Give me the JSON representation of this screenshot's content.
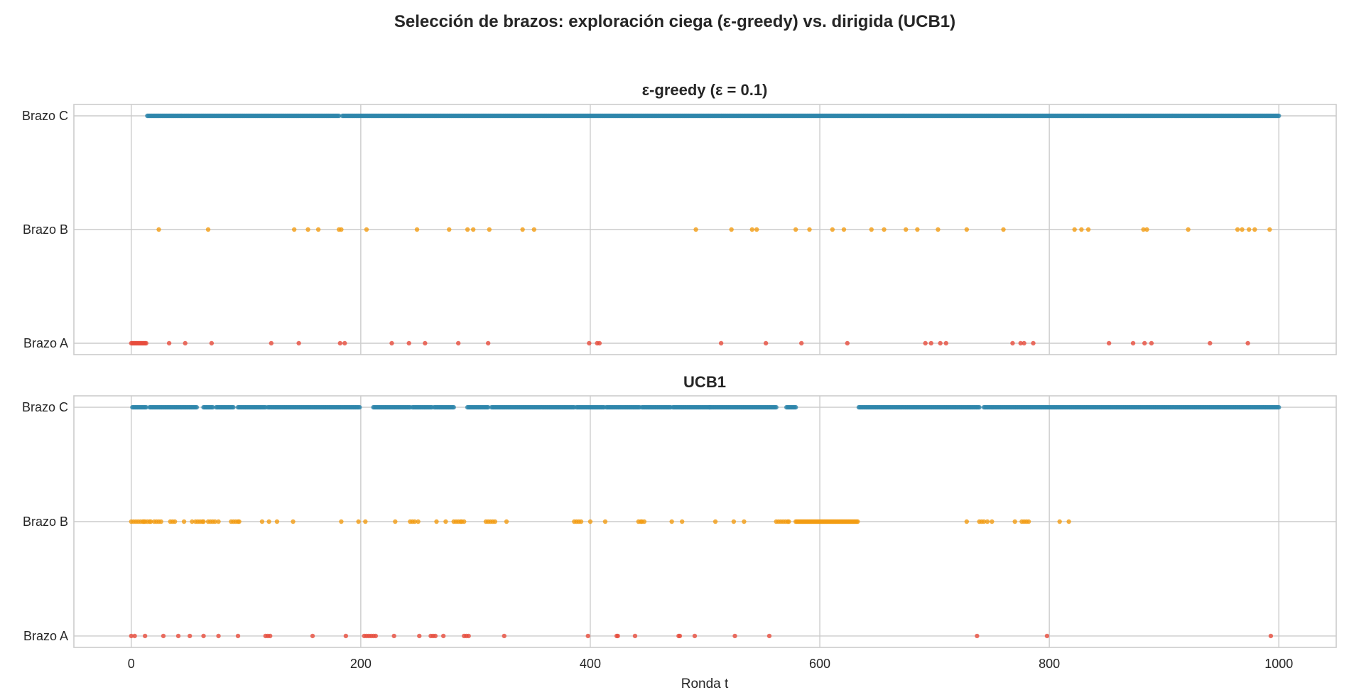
{
  "chart_data": {
    "title": "Selección de brazos: exploración ciega (ε-greedy) vs. dirigida (UCB1)",
    "xlabel": "Ronda t",
    "xlim": [
      -50,
      1050
    ],
    "xticks": [
      0,
      200,
      400,
      600,
      800,
      1000
    ],
    "grid": true,
    "categories": [
      "Brazo A",
      "Brazo B",
      "Brazo C"
    ],
    "colors": {
      "Brazo A": "#E74C3C",
      "Brazo B": "#F39C12",
      "Brazo C": "#2E86AB"
    },
    "panels": [
      {
        "type": "scatter",
        "title": "ε-greedy (ε = 0.1)",
        "series": [
          {
            "category": "Brazo A",
            "x": [
              0,
              1,
              2,
              3,
              4,
              5,
              6,
              7,
              8,
              9,
              10,
              11,
              12,
              13,
              33,
              47,
              70,
              122,
              146,
              182,
              186,
              227,
              242,
              256,
              285,
              311,
              399,
              406,
              408,
              514,
              553,
              584,
              624,
              692,
              697,
              705,
              710,
              768,
              775,
              778,
              786,
              852,
              873,
              883,
              889,
              940,
              973
            ]
          },
          {
            "category": "Brazo B",
            "x": [
              24,
              67,
              142,
              154,
              163,
              181,
              183,
              205,
              249,
              277,
              293,
              298,
              312,
              341,
              351,
              492,
              523,
              541,
              545,
              579,
              591,
              611,
              621,
              645,
              656,
              675,
              685,
              703,
              728,
              760,
              822,
              828,
              834,
              882,
              885,
              921,
              964,
              968,
              974,
              979,
              992
            ]
          },
          {
            "category": "Brazo C",
            "x_ranges": [
              [
                14,
                181
              ],
              [
                184,
                1000
              ]
            ]
          }
        ]
      },
      {
        "type": "scatter",
        "title": "UCB1",
        "series": [
          {
            "category": "Brazo A",
            "x": [
              0,
              3,
              12,
              28,
              41,
              51,
              63,
              76,
              93,
              117,
              119,
              121,
              158,
              187,
              203,
              205,
              207,
              209,
              211,
              213,
              229,
              251,
              261,
              263,
              265,
              272,
              290,
              292,
              294,
              325,
              398,
              423,
              424,
              439,
              477,
              478,
              491,
              526,
              556,
              737,
              798,
              993
            ]
          },
          {
            "category": "Brazo B",
            "x": [
              0,
              2,
              4,
              6,
              8,
              10,
              11,
              12,
              14,
              16,
              17,
              20,
              22,
              24,
              26,
              34,
              36,
              38,
              46,
              53,
              56,
              58,
              60,
              62,
              63,
              67,
              69,
              71,
              73,
              76,
              87,
              89,
              91,
              93,
              94,
              114,
              120,
              127,
              141,
              183,
              198,
              204,
              230,
              243,
              245,
              247,
              250,
              266,
              274,
              281,
              283,
              285,
              287,
              288,
              290,
              309,
              311,
              313,
              315,
              317,
              327,
              386,
              388,
              390,
              392,
              400,
              413,
              442,
              444,
              445,
              447,
              471,
              480,
              509,
              525,
              534,
              562,
              564,
              566,
              568,
              570,
              572,
              573,
              579,
              580,
              581,
              582,
              583,
              584,
              585,
              586,
              587,
              588,
              589,
              590,
              591,
              592,
              593,
              594,
              595,
              596,
              597,
              598,
              599,
              600,
              601,
              602,
              603,
              604,
              605,
              606,
              607,
              608,
              609,
              610,
              611,
              612,
              613,
              614,
              615,
              616,
              617,
              618,
              619,
              620,
              621,
              622,
              623,
              624,
              625,
              626,
              627,
              628,
              629,
              630,
              631,
              632,
              633,
              728,
              739,
              741,
              743,
              746,
              750,
              770,
              776,
              778,
              780,
              782,
              809,
              817
            ]
          },
          {
            "category": "Brazo C",
            "x_ranges": [
              [
                1,
                13
              ],
              [
                16,
                37
              ],
              [
                38,
                57
              ],
              [
                63,
                71
              ],
              [
                74,
                89
              ],
              [
                93,
                117
              ],
              [
                119,
                158
              ],
              [
                159,
                199
              ],
              [
                211,
                243
              ],
              [
                245,
                262
              ],
              [
                264,
                281
              ],
              [
                293,
                311
              ],
              [
                314,
                386
              ],
              [
                388,
                412
              ],
              [
                414,
                443
              ],
              [
                445,
                470
              ],
              [
                472,
                504
              ],
              [
                504,
                562
              ],
              [
                571,
                579
              ],
              [
                634,
                739
              ],
              [
                743,
                775
              ],
              [
                776,
                1000
              ]
            ]
          }
        ]
      }
    ]
  }
}
